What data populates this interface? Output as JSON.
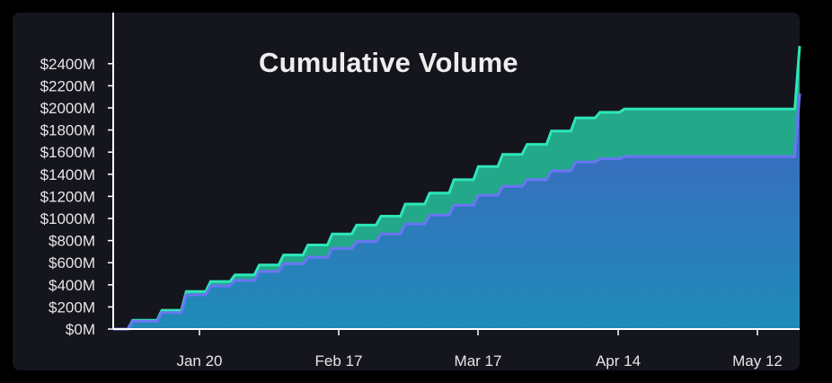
{
  "chart_data": {
    "type": "area",
    "title": "Cumulative Volume",
    "xlabel": "",
    "ylabel": "",
    "unit": "$M",
    "ylim": [
      0,
      2500
    ],
    "ytick_labels": [
      "$0M",
      "$200M",
      "$400M",
      "$600M",
      "$800M",
      "$1000M",
      "$1200M",
      "$1400M",
      "$1600M",
      "$1800M",
      "$2000M",
      "$2200M",
      "$2400M"
    ],
    "yticks": [
      0,
      200,
      400,
      600,
      800,
      1000,
      1200,
      1400,
      1600,
      1800,
      2000,
      2200,
      2400
    ],
    "xtick_labels": [
      "Jan 20",
      "Feb 17",
      "Mar 17",
      "Apr 14",
      "May 12"
    ],
    "stacked": true,
    "step": true,
    "colors": {
      "series_lower": "#6b74f5",
      "series_upper": "#2ee6b8",
      "fill_lower_top": "#3f65c0",
      "fill_lower_bottom": "#1f8bb8",
      "fill_upper": "#23a88a",
      "axis": "#ffffff",
      "background": "#15151e"
    },
    "x": [
      0,
      3,
      4,
      9,
      10,
      14,
      15,
      19,
      20,
      24,
      25,
      29,
      30,
      34,
      35,
      39,
      40,
      44,
      45,
      49,
      50,
      54,
      55,
      59,
      60,
      64,
      65,
      69,
      70,
      74,
      75,
      79,
      80,
      84,
      85,
      89,
      90,
      94,
      95,
      99,
      100,
      104,
      105,
      109,
      110,
      114,
      115,
      119,
      120,
      124,
      125,
      129,
      130,
      134,
      135,
      139,
      140,
      141
    ],
    "series": [
      {
        "values": [
          0,
          0,
          70,
          70,
          150,
          150,
          310,
          310,
          390,
          390,
          440,
          440,
          520,
          520,
          590,
          590,
          650,
          650,
          730,
          730,
          790,
          790,
          860,
          860,
          950,
          950,
          1030,
          1030,
          1120,
          1120,
          1210,
          1210,
          1290,
          1290,
          1350,
          1350,
          1430,
          1430,
          1510,
          1510,
          1540,
          1540,
          1560,
          1560,
          1560,
          1560,
          1560,
          1560,
          1560,
          1560,
          1560,
          1560,
          1560,
          1560,
          1560,
          1560,
          1560,
          2130
        ]
      },
      {
        "values": [
          0,
          0,
          10,
          10,
          20,
          20,
          30,
          30,
          40,
          40,
          50,
          50,
          60,
          60,
          80,
          80,
          110,
          110,
          130,
          130,
          150,
          150,
          160,
          160,
          180,
          180,
          200,
          200,
          230,
          230,
          260,
          260,
          290,
          290,
          320,
          320,
          360,
          360,
          400,
          400,
          420,
          420,
          430,
          430,
          430,
          430,
          430,
          430,
          430,
          430,
          430,
          430,
          430,
          430,
          430,
          430,
          430,
          430
        ]
      }
    ]
  }
}
